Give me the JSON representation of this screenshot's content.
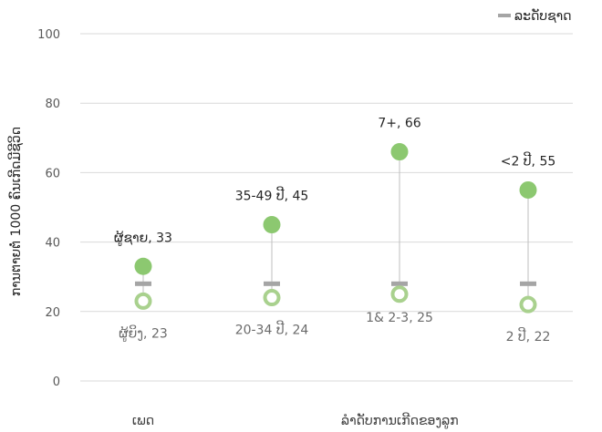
{
  "chart_data": {
    "type": "scatter",
    "ylabel": "ການຕາຍຕໍ່ 1000 ຄົນເກີດມີຊີວິດ",
    "ylim": [
      0,
      100
    ],
    "yticks": [
      0,
      20,
      40,
      60,
      80,
      100
    ],
    "legend": {
      "position": "top-right",
      "label": "ລະດັບຊາດ"
    },
    "national_level": 28,
    "groups": [
      {
        "name": "ເພດ",
        "categories": [
          0
        ]
      },
      {
        "name": "ລໍາດັບການເກີດຂອງລູກ",
        "categories": [
          1,
          2,
          3
        ]
      }
    ],
    "categories": [
      {
        "high_label": "ຜູ້ຊາຍ, 33",
        "high_value": 33,
        "low_label": "ຜູ້ຍິງ, 23",
        "low_value": 23,
        "national": 28
      },
      {
        "high_label": "35-49 ປີ, 45",
        "high_value": 45,
        "low_label": "20-34 ປີ, 24",
        "low_value": 24,
        "national": 28
      },
      {
        "high_label": "7+, 66",
        "high_value": 66,
        "low_label": "1& 2-3, 25",
        "low_value": 25,
        "national": 28
      },
      {
        "high_label": "<2 ປີ, 55",
        "high_value": 55,
        "low_label": "2 ປີ, 22",
        "low_value": 22,
        "national": 28
      }
    ],
    "colors": {
      "high": "#8cc870",
      "low": "#a9d18e",
      "national": "#a5a5a5",
      "range_line": "#bfbfbf",
      "grid": "#d9d9d9"
    }
  }
}
